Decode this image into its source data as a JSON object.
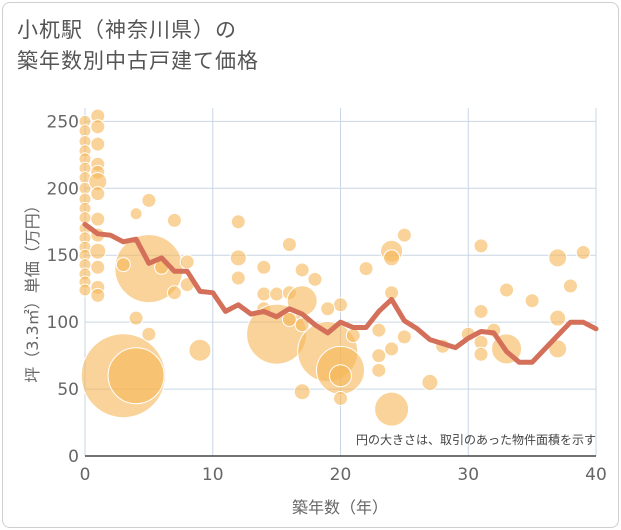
{
  "header": {
    "title_line1": "小杌駅（神奈川県）の",
    "title_line2": "築年数別中古戸建て価格"
  },
  "chart_data": {
    "type": "scatter",
    "xlabel": "築年数（年）",
    "ylabel": "坪（3.3㎡）単価（万円）",
    "xlim": [
      0,
      40
    ],
    "ylim": [
      0,
      260
    ],
    "x_ticks": [
      0,
      10,
      20,
      30,
      40
    ],
    "y_ticks": [
      0,
      50,
      100,
      150,
      200,
      250
    ],
    "x_tick_labels": [
      "0",
      "10",
      "20",
      "30",
      "40"
    ],
    "y_tick_labels": [
      "0",
      "50",
      "100",
      "150",
      "200",
      "250"
    ],
    "grid": true,
    "note": "円の大きさは、取引のあった物件面積を示す",
    "bubble_color": "#f5b85a",
    "line_color": "#d4705a",
    "bubbles": [
      [
        0,
        250,
        6
      ],
      [
        0,
        243,
        6
      ],
      [
        0,
        235,
        6
      ],
      [
        0,
        228,
        6
      ],
      [
        0,
        222,
        6
      ],
      [
        0,
        215,
        6
      ],
      [
        0,
        208,
        6
      ],
      [
        0,
        200,
        6
      ],
      [
        0,
        192,
        6
      ],
      [
        0,
        185,
        6
      ],
      [
        0,
        178,
        6
      ],
      [
        0,
        170,
        6
      ],
      [
        0,
        163,
        6
      ],
      [
        0,
        156,
        6
      ],
      [
        0,
        150,
        6
      ],
      [
        0,
        143,
        6
      ],
      [
        0,
        136,
        6
      ],
      [
        0,
        130,
        6
      ],
      [
        0,
        124,
        6
      ],
      [
        1,
        254,
        7
      ],
      [
        1,
        246,
        7
      ],
      [
        1,
        233,
        7
      ],
      [
        1,
        218,
        7
      ],
      [
        1,
        212,
        7
      ],
      [
        1,
        205,
        9
      ],
      [
        1,
        196,
        7
      ],
      [
        1,
        177,
        7
      ],
      [
        1,
        165,
        7
      ],
      [
        1,
        153,
        8
      ],
      [
        1,
        141,
        7
      ],
      [
        1,
        126,
        7
      ],
      [
        1,
        120,
        7
      ],
      [
        3,
        60,
        42
      ],
      [
        4,
        60,
        28
      ],
      [
        5,
        140,
        34
      ],
      [
        3,
        143,
        7
      ],
      [
        4,
        181,
        6
      ],
      [
        5,
        191,
        7
      ],
      [
        4,
        103,
        7
      ],
      [
        5,
        91,
        7
      ],
      [
        6,
        141,
        7
      ],
      [
        7,
        122,
        7
      ],
      [
        7,
        176,
        7
      ],
      [
        8,
        128,
        7
      ],
      [
        8,
        145,
        7
      ],
      [
        9,
        79,
        11
      ],
      [
        12,
        175,
        7
      ],
      [
        12,
        148,
        8
      ],
      [
        12,
        133,
        7
      ],
      [
        14,
        141,
        7
      ],
      [
        14,
        121,
        7
      ],
      [
        14,
        110,
        7
      ],
      [
        15,
        91,
        30
      ],
      [
        15,
        121,
        7
      ],
      [
        16,
        122,
        7
      ],
      [
        16,
        158,
        7
      ],
      [
        16,
        102,
        7
      ],
      [
        17,
        116,
        15
      ],
      [
        17,
        139,
        7
      ],
      [
        18,
        132,
        7
      ],
      [
        17,
        98,
        7
      ],
      [
        17,
        48,
        8
      ],
      [
        19,
        78,
        30
      ],
      [
        20,
        64,
        24
      ],
      [
        20,
        60,
        11
      ],
      [
        20,
        43,
        7
      ],
      [
        21,
        90,
        7
      ],
      [
        20,
        113,
        7
      ],
      [
        19,
        110,
        7
      ],
      [
        22,
        140,
        7
      ],
      [
        23,
        75,
        7
      ],
      [
        23,
        64,
        7
      ],
      [
        23,
        94,
        7
      ],
      [
        24,
        153,
        11
      ],
      [
        24,
        148,
        8
      ],
      [
        24,
        122,
        7
      ],
      [
        24,
        80,
        7
      ],
      [
        24,
        35,
        17
      ],
      [
        25,
        165,
        7
      ],
      [
        25,
        89,
        7
      ],
      [
        27,
        55,
        8
      ],
      [
        28,
        82,
        7
      ],
      [
        30,
        91,
        7
      ],
      [
        31,
        157,
        7
      ],
      [
        31,
        108,
        7
      ],
      [
        32,
        94,
        7
      ],
      [
        31,
        85,
        7
      ],
      [
        31,
        76,
        7
      ],
      [
        33,
        124,
        7
      ],
      [
        33,
        80,
        15
      ],
      [
        35,
        116,
        7
      ],
      [
        37,
        148,
        9
      ],
      [
        37,
        103,
        8
      ],
      [
        37,
        80,
        9
      ],
      [
        38,
        127,
        7
      ],
      [
        39,
        152,
        7
      ]
    ],
    "series": [
      {
        "x": [
          0,
          1,
          2,
          3,
          4,
          5,
          6,
          7,
          8,
          9,
          10,
          11,
          12,
          13,
          14,
          15,
          16,
          17,
          18,
          19,
          20,
          21,
          22,
          23,
          24,
          25,
          26,
          27,
          28,
          29,
          30,
          31,
          32,
          33,
          34,
          35,
          36,
          37,
          38,
          39,
          40
        ],
        "y": [
          173,
          166,
          165,
          160,
          162,
          144,
          148,
          138,
          138,
          123,
          122,
          108,
          113,
          106,
          108,
          104,
          110,
          106,
          98,
          92,
          100,
          96,
          96,
          108,
          117,
          101,
          95,
          87,
          84,
          81,
          88,
          93,
          92,
          78,
          70,
          70,
          80,
          90,
          100,
          100,
          95
        ]
      }
    ]
  }
}
